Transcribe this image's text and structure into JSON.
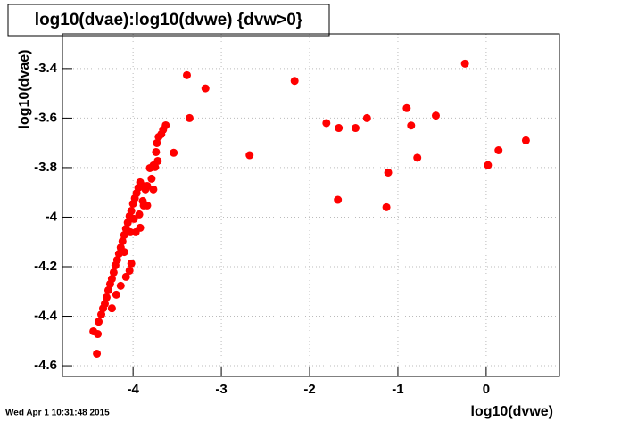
{
  "chart_data": {
    "type": "scatter",
    "title": "log10(dvae):log10(dvwe) {dvw>0}",
    "x_label": "log10(dvwe)",
    "y_label": "log10(dvae)",
    "timestamp": "Wed Apr  1 10:31:48 2015",
    "color": "#ff0000",
    "grid": true,
    "xlim": [
      -4.8,
      0.83
    ],
    "xticks": [
      -4,
      -3,
      -2,
      -1,
      0
    ],
    "ylim": [
      -4.643,
      -3.26
    ],
    "yticks": [
      -4.6,
      -4.4,
      -4.2,
      -4,
      -3.8,
      -3.6,
      -3.4
    ],
    "x": [
      -3.39,
      -3.36,
      -3.18,
      -2.68,
      -2.17,
      -1.81,
      -1.67,
      -1.68,
      -1.48,
      -1.35,
      -1.11,
      -1.13,
      -0.9,
      -0.85,
      -0.78,
      -0.57,
      -0.24,
      0.02,
      0.14,
      0.45,
      -3.54,
      -4.41,
      -4.45,
      -4.4,
      -4.39,
      -4.36,
      -4.34,
      -4.32,
      -4.3,
      -4.28,
      -4.26,
      -4.24,
      -4.22,
      -4.2,
      -4.18,
      -4.16,
      -4.14,
      -4.12,
      -4.1,
      -4.08,
      -4.06,
      -4.04,
      -4.02,
      -4.0,
      -3.98,
      -3.96,
      -3.94,
      -3.92,
      -3.89,
      -3.86,
      -3.88,
      -3.99,
      -4.03,
      -3.93,
      -3.84,
      -4.04,
      -4.08,
      -4.14,
      -4.19,
      -4.24,
      -3.89,
      -3.84,
      -3.79,
      -3.77,
      -3.81,
      -3.77,
      -3.74,
      -3.73,
      -3.71,
      -3.68,
      -3.66,
      -3.63,
      -3.75,
      -3.72,
      -4.02,
      -4.1,
      -3.97,
      -3.92
    ],
    "values": [
      -3.427,
      -3.6,
      -3.48,
      -3.75,
      -3.45,
      -3.62,
      -3.64,
      -3.93,
      -3.64,
      -3.6,
      -3.82,
      -3.96,
      -3.56,
      -3.63,
      -3.76,
      -3.59,
      -3.38,
      -3.79,
      -3.73,
      -3.69,
      -3.74,
      -4.551,
      -4.461,
      -4.472,
      -4.422,
      -4.393,
      -4.368,
      -4.35,
      -4.324,
      -4.295,
      -4.27,
      -4.249,
      -4.223,
      -4.195,
      -4.173,
      -4.148,
      -4.123,
      -4.097,
      -4.072,
      -4.047,
      -4.022,
      -3.996,
      -3.975,
      -3.946,
      -3.924,
      -3.903,
      -3.881,
      -3.859,
      -3.874,
      -3.888,
      -3.953,
      -4.007,
      -4.061,
      -3.989,
      -3.953,
      -4.216,
      -4.241,
      -4.277,
      -4.313,
      -4.368,
      -3.935,
      -3.874,
      -3.845,
      -3.888,
      -3.802,
      -3.791,
      -3.737,
      -3.701,
      -3.676,
      -3.665,
      -3.647,
      -3.629,
      -3.798,
      -3.773,
      -4.187,
      -4.141,
      -4.061,
      -4.043
    ]
  }
}
